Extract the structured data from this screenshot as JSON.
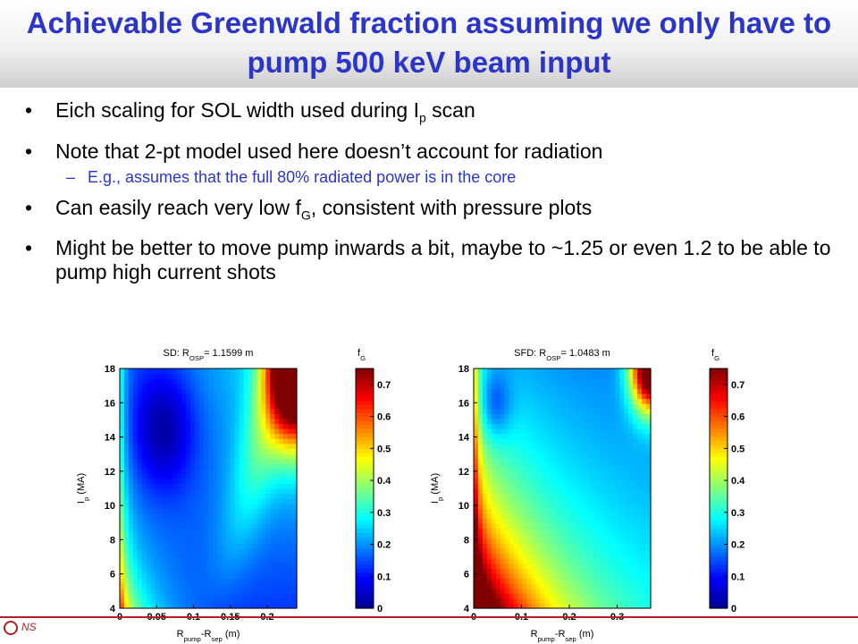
{
  "slide": {
    "title": "Achievable Greenwald fraction assuming we only have to pump 500 keV beam input",
    "bullets": [
      {
        "pre": "Eich scaling for SOL width used during I",
        "sub": "p",
        "post": " scan"
      },
      {
        "pre": "Note that 2-pt model used here doesn’t account for radiation",
        "sub": "",
        "post": ""
      },
      {
        "pre": "Can easily reach very low f",
        "sub": "G",
        "post": ", consistent with pressure plots"
      },
      {
        "pre": "Might be better to move pump inwards a bit, maybe to ~1.25 or even 1.2 to be able to pump high current shots",
        "sub": "",
        "post": ""
      }
    ],
    "subbullet": "E.g., assumes that the full 80% radiated power is in the core",
    "bullet_glyph": "•",
    "sub_glyph": "–",
    "footer_text": "NS"
  },
  "colors": {
    "title": "#2b35c9",
    "footer": "#b22222",
    "colormap": [
      "#00008f",
      "#0000ff",
      "#0080ff",
      "#00ffff",
      "#80ff80",
      "#ffff00",
      "#ff8000",
      "#ff0000",
      "#800000"
    ]
  },
  "chart_data": [
    {
      "type": "heatmap",
      "title_pre": "SD: R",
      "title_sub": "OSP",
      "title_post": "= 1.1599 m",
      "xlabel_pre": "R",
      "xlabel_sub1": "pump",
      "xlabel_mid": "-R",
      "xlabel_sub2": "sep",
      "xlabel_post": " (m)",
      "ylabel_pre": "I",
      "ylabel_sub": "p",
      "ylabel_post": " (MA)",
      "colorbar_label_pre": "f",
      "colorbar_label_sub": "G",
      "xlim": [
        0,
        0.24
      ],
      "ylim": [
        4,
        18
      ],
      "xticks": [
        "0",
        "0.05",
        "0.1",
        "0.15",
        "0.2"
      ],
      "xtick_values": [
        0,
        0.05,
        0.1,
        0.15,
        0.2
      ],
      "yticks": [
        "4",
        "6",
        "8",
        "10",
        "12",
        "14",
        "16",
        "18"
      ],
      "ytick_values": [
        4,
        6,
        8,
        10,
        12,
        14,
        16,
        18
      ],
      "clim": [
        0,
        0.75
      ],
      "colorbar_ticks": [
        "0",
        "0.1",
        "0.2",
        "0.3",
        "0.4",
        "0.5",
        "0.6",
        "0.7"
      ],
      "colorbar_values": [
        0,
        0.1,
        0.2,
        0.3,
        0.4,
        0.5,
        0.6,
        0.7
      ]
    },
    {
      "type": "heatmap",
      "title_pre": "SFD: R",
      "title_sub": "OSP",
      "title_post": "= 1.0483 m",
      "xlabel_pre": "R",
      "xlabel_sub1": "pump",
      "xlabel_mid": "-R",
      "xlabel_sub2": "sep",
      "xlabel_post": " (m)",
      "ylabel_pre": "I",
      "ylabel_sub": "p",
      "ylabel_post": " (MA)",
      "colorbar_label_pre": "f",
      "colorbar_label_sub": "G",
      "xlim": [
        0,
        0.37
      ],
      "ylim": [
        4,
        18
      ],
      "xticks": [
        "0",
        "0.1",
        "0.2",
        "0.3"
      ],
      "xtick_values": [
        0,
        0.1,
        0.2,
        0.3
      ],
      "yticks": [
        "4",
        "6",
        "8",
        "10",
        "12",
        "14",
        "16",
        "18"
      ],
      "ytick_values": [
        4,
        6,
        8,
        10,
        12,
        14,
        16,
        18
      ],
      "clim": [
        0,
        0.75
      ],
      "colorbar_ticks": [
        "0",
        "0.1",
        "0.2",
        "0.3",
        "0.4",
        "0.5",
        "0.6",
        "0.7"
      ],
      "colorbar_values": [
        0,
        0.1,
        0.2,
        0.3,
        0.4,
        0.5,
        0.6,
        0.7
      ]
    }
  ]
}
